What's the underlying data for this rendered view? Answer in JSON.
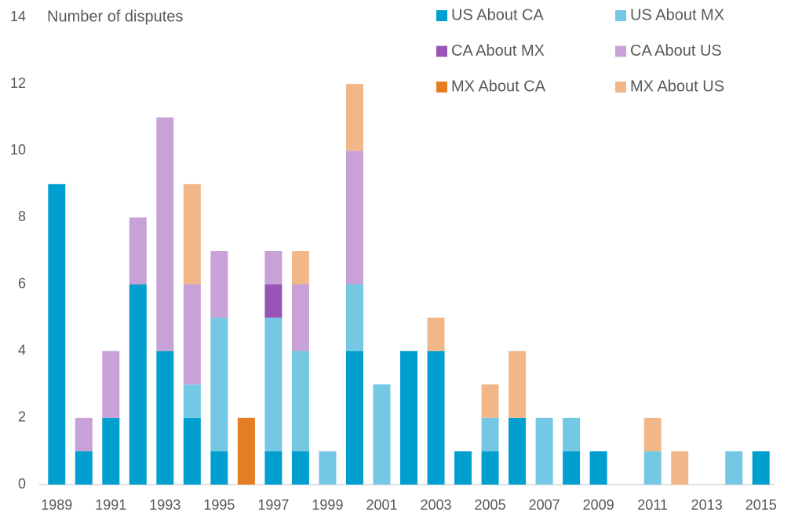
{
  "chart_data": {
    "type": "stacked-bar",
    "y_label": "Number of disputes",
    "categories": [
      "1989",
      null,
      "1991",
      null,
      "1993",
      null,
      "1995",
      null,
      "1997",
      null,
      "1999",
      null,
      "2001",
      null,
      "2003",
      null,
      "2005",
      null,
      "2007",
      null,
      "2009",
      null,
      "2011",
      null,
      "2013",
      null,
      "2015"
    ],
    "series": [
      {
        "name": "US About CA",
        "color": "#009fcf",
        "values": [
          9,
          1,
          2,
          6,
          4,
          2,
          1,
          0,
          1,
          1,
          0,
          4,
          0,
          4,
          4,
          1,
          1,
          2,
          0,
          1,
          1,
          0,
          0,
          0,
          0,
          0,
          1
        ]
      },
      {
        "name": "US About MX",
        "color": "#75c8e4",
        "values": [
          0,
          0,
          0,
          0,
          0,
          1,
          4,
          0,
          4,
          3,
          1,
          2,
          3,
          0,
          0,
          0,
          1,
          0,
          2,
          1,
          0,
          0,
          1,
          0,
          0,
          1,
          0
        ]
      },
      {
        "name": "CA About MX",
        "color": "#9955b5",
        "values": [
          0,
          0,
          0,
          0,
          0,
          0,
          0,
          0,
          1,
          0,
          0,
          0,
          0,
          0,
          0,
          0,
          0,
          0,
          0,
          0,
          0,
          0,
          0,
          0,
          0,
          0,
          0
        ]
      },
      {
        "name": "CA About US",
        "color": "#c7a1d7",
        "values": [
          0,
          1,
          2,
          2,
          7,
          3,
          2,
          0,
          1,
          2,
          0,
          4,
          0,
          0,
          0,
          0,
          0,
          0,
          0,
          0,
          0,
          0,
          0,
          0,
          0,
          0,
          0
        ]
      },
      {
        "name": "MX About CA",
        "color": "#e57e22",
        "values": [
          0,
          0,
          0,
          0,
          0,
          0,
          0,
          2,
          0,
          0,
          0,
          0,
          0,
          0,
          0,
          0,
          0,
          0,
          0,
          0,
          0,
          0,
          0,
          0,
          0,
          0,
          0
        ]
      },
      {
        "name": "MX About US",
        "color": "#f2b789",
        "values": [
          0,
          0,
          0,
          0,
          0,
          3,
          0,
          0,
          0,
          1,
          0,
          2,
          0,
          0,
          1,
          0,
          1,
          2,
          0,
          0,
          0,
          0,
          1,
          1,
          0,
          0,
          0
        ]
      }
    ],
    "ylim": [
      0,
      14
    ],
    "yticks": [
      0,
      2,
      4,
      6,
      8,
      10,
      12,
      14
    ],
    "legend": "top-right"
  }
}
